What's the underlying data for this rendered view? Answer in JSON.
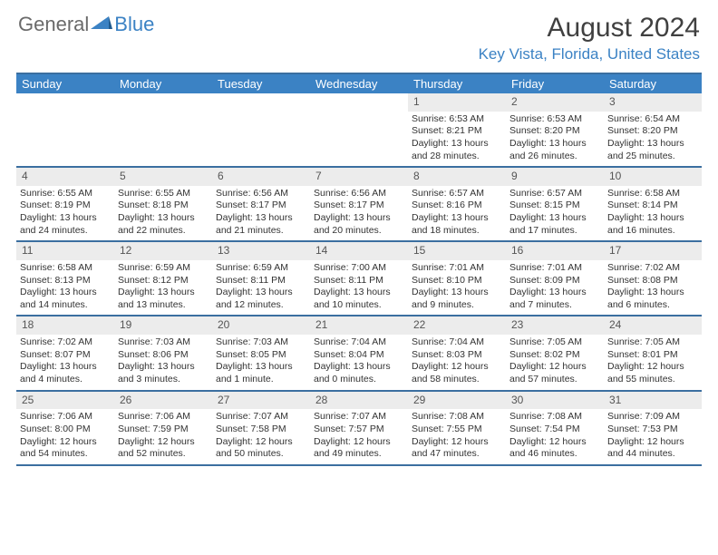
{
  "logo": {
    "text1": "General",
    "text2": "Blue"
  },
  "title": "August 2024",
  "location": "Key Vista, Florida, United States",
  "colors": {
    "header_bg": "#3b82c4",
    "border": "#3b6fa0",
    "daynum_bg": "#ececec",
    "text": "#333333",
    "title_color": "#404040"
  },
  "day_names": [
    "Sunday",
    "Monday",
    "Tuesday",
    "Wednesday",
    "Thursday",
    "Friday",
    "Saturday"
  ],
  "weeks": [
    [
      null,
      null,
      null,
      null,
      {
        "n": "1",
        "sr": "6:53 AM",
        "ss": "8:21 PM",
        "dl": "13 hours and 28 minutes."
      },
      {
        "n": "2",
        "sr": "6:53 AM",
        "ss": "8:20 PM",
        "dl": "13 hours and 26 minutes."
      },
      {
        "n": "3",
        "sr": "6:54 AM",
        "ss": "8:20 PM",
        "dl": "13 hours and 25 minutes."
      }
    ],
    [
      {
        "n": "4",
        "sr": "6:55 AM",
        "ss": "8:19 PM",
        "dl": "13 hours and 24 minutes."
      },
      {
        "n": "5",
        "sr": "6:55 AM",
        "ss": "8:18 PM",
        "dl": "13 hours and 22 minutes."
      },
      {
        "n": "6",
        "sr": "6:56 AM",
        "ss": "8:17 PM",
        "dl": "13 hours and 21 minutes."
      },
      {
        "n": "7",
        "sr": "6:56 AM",
        "ss": "8:17 PM",
        "dl": "13 hours and 20 minutes."
      },
      {
        "n": "8",
        "sr": "6:57 AM",
        "ss": "8:16 PM",
        "dl": "13 hours and 18 minutes."
      },
      {
        "n": "9",
        "sr": "6:57 AM",
        "ss": "8:15 PM",
        "dl": "13 hours and 17 minutes."
      },
      {
        "n": "10",
        "sr": "6:58 AM",
        "ss": "8:14 PM",
        "dl": "13 hours and 16 minutes."
      }
    ],
    [
      {
        "n": "11",
        "sr": "6:58 AM",
        "ss": "8:13 PM",
        "dl": "13 hours and 14 minutes."
      },
      {
        "n": "12",
        "sr": "6:59 AM",
        "ss": "8:12 PM",
        "dl": "13 hours and 13 minutes."
      },
      {
        "n": "13",
        "sr": "6:59 AM",
        "ss": "8:11 PM",
        "dl": "13 hours and 12 minutes."
      },
      {
        "n": "14",
        "sr": "7:00 AM",
        "ss": "8:11 PM",
        "dl": "13 hours and 10 minutes."
      },
      {
        "n": "15",
        "sr": "7:01 AM",
        "ss": "8:10 PM",
        "dl": "13 hours and 9 minutes."
      },
      {
        "n": "16",
        "sr": "7:01 AM",
        "ss": "8:09 PM",
        "dl": "13 hours and 7 minutes."
      },
      {
        "n": "17",
        "sr": "7:02 AM",
        "ss": "8:08 PM",
        "dl": "13 hours and 6 minutes."
      }
    ],
    [
      {
        "n": "18",
        "sr": "7:02 AM",
        "ss": "8:07 PM",
        "dl": "13 hours and 4 minutes."
      },
      {
        "n": "19",
        "sr": "7:03 AM",
        "ss": "8:06 PM",
        "dl": "13 hours and 3 minutes."
      },
      {
        "n": "20",
        "sr": "7:03 AM",
        "ss": "8:05 PM",
        "dl": "13 hours and 1 minute."
      },
      {
        "n": "21",
        "sr": "7:04 AM",
        "ss": "8:04 PM",
        "dl": "13 hours and 0 minutes."
      },
      {
        "n": "22",
        "sr": "7:04 AM",
        "ss": "8:03 PM",
        "dl": "12 hours and 58 minutes."
      },
      {
        "n": "23",
        "sr": "7:05 AM",
        "ss": "8:02 PM",
        "dl": "12 hours and 57 minutes."
      },
      {
        "n": "24",
        "sr": "7:05 AM",
        "ss": "8:01 PM",
        "dl": "12 hours and 55 minutes."
      }
    ],
    [
      {
        "n": "25",
        "sr": "7:06 AM",
        "ss": "8:00 PM",
        "dl": "12 hours and 54 minutes."
      },
      {
        "n": "26",
        "sr": "7:06 AM",
        "ss": "7:59 PM",
        "dl": "12 hours and 52 minutes."
      },
      {
        "n": "27",
        "sr": "7:07 AM",
        "ss": "7:58 PM",
        "dl": "12 hours and 50 minutes."
      },
      {
        "n": "28",
        "sr": "7:07 AM",
        "ss": "7:57 PM",
        "dl": "12 hours and 49 minutes."
      },
      {
        "n": "29",
        "sr": "7:08 AM",
        "ss": "7:55 PM",
        "dl": "12 hours and 47 minutes."
      },
      {
        "n": "30",
        "sr": "7:08 AM",
        "ss": "7:54 PM",
        "dl": "12 hours and 46 minutes."
      },
      {
        "n": "31",
        "sr": "7:09 AM",
        "ss": "7:53 PM",
        "dl": "12 hours and 44 minutes."
      }
    ]
  ]
}
